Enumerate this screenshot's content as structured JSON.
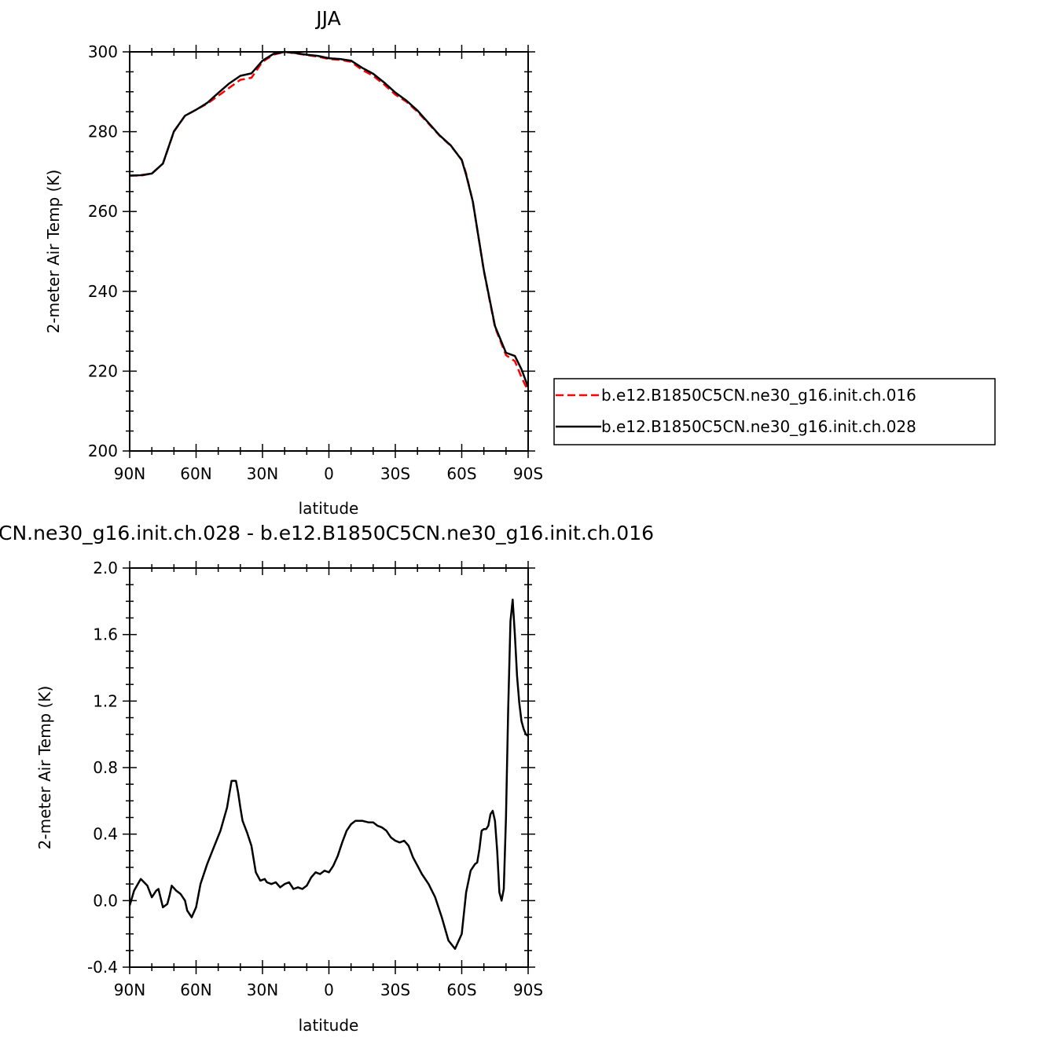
{
  "chart_data": [
    {
      "type": "line",
      "title": "JJA",
      "xlabel": "latitude",
      "ylabel": "2-meter Air Temp (K)",
      "xlim": [
        90,
        -90
      ],
      "ylim": [
        200,
        300
      ],
      "x_ticks": [
        90,
        60,
        30,
        0,
        -30,
        -60,
        -90
      ],
      "x_tick_labels": [
        "90N",
        "60N",
        "30N",
        "0",
        "30S",
        "60S",
        "90S"
      ],
      "y_ticks": [
        200,
        220,
        240,
        260,
        280,
        300
      ],
      "y_tick_labels": [
        "200",
        "220",
        "240",
        "260",
        "280",
        "300"
      ],
      "legend_position": "right",
      "series": [
        {
          "name": "b.e12.B1850C5CN.ne30_g16.init.ch.016",
          "color": "#ff0000",
          "dash": "dashed",
          "x": [
            90,
            85,
            80,
            75,
            70,
            65,
            60,
            55,
            50,
            45,
            40,
            35,
            30,
            25,
            20,
            15,
            10,
            5,
            0,
            -5,
            -10,
            -15,
            -20,
            -25,
            -30,
            -35,
            -40,
            -45,
            -50,
            -55,
            -60,
            -62,
            -65,
            -70,
            -75,
            -80,
            -84,
            -87,
            -90
          ],
          "y": [
            269,
            269,
            269.5,
            272,
            280,
            284,
            285.5,
            287,
            289,
            291,
            293,
            293.5,
            297.5,
            299.3,
            300,
            299.6,
            299.2,
            298.8,
            298.2,
            298,
            297.5,
            295.5,
            294,
            291.8,
            289.3,
            287.5,
            285,
            282,
            279,
            276.5,
            273,
            269.5,
            262.5,
            245,
            231,
            224,
            222.5,
            218.5,
            215
          ]
        },
        {
          "name": "b.e12.B1850C5CN.ne30_g16.init.ch.028",
          "color": "#000000",
          "dash": "solid",
          "x": [
            90,
            85,
            80,
            75,
            70,
            65,
            60,
            55,
            50,
            45,
            40,
            35,
            30,
            25,
            20,
            15,
            10,
            5,
            0,
            -5,
            -10,
            -15,
            -20,
            -25,
            -30,
            -35,
            -40,
            -45,
            -50,
            -55,
            -60,
            -62,
            -65,
            -70,
            -75,
            -80,
            -84,
            -87,
            -90
          ],
          "y": [
            269,
            269.1,
            269.5,
            272,
            280.1,
            284,
            285.5,
            287.2,
            289.7,
            292.1,
            294,
            294.6,
            297.8,
            299.5,
            300,
            299.7,
            299.3,
            299,
            298.4,
            298.2,
            297.8,
            296,
            294.5,
            292.3,
            289.8,
            287.8,
            285.3,
            282.2,
            279.1,
            276.6,
            272.9,
            269.2,
            262.5,
            245.2,
            231.3,
            224.6,
            223.8,
            220.5,
            216
          ]
        }
      ]
    },
    {
      "type": "line",
      "title": "CN.ne30_g16.init.ch.028 - b.e12.B1850C5CN.ne30_g16.init.ch.016",
      "xlabel": "latitude",
      "ylabel": "2-meter Air Temp (K)",
      "xlim": [
        90,
        -90
      ],
      "ylim": [
        -0.4,
        2.0
      ],
      "x_ticks": [
        90,
        60,
        30,
        0,
        -30,
        -60,
        -90
      ],
      "x_tick_labels": [
        "90N",
        "60N",
        "30N",
        "0",
        "30S",
        "60S",
        "90S"
      ],
      "y_ticks": [
        -0.4,
        0.0,
        0.4,
        0.8,
        1.2,
        1.6,
        2.0
      ],
      "y_tick_labels": [
        "-0.4",
        "0.0",
        "0.4",
        "0.8",
        "1.2",
        "1.6",
        "2.0"
      ],
      "series": [
        {
          "color": "#000000",
          "dash": "solid",
          "x": [
            90,
            88,
            85,
            82,
            80,
            78,
            77,
            75,
            73,
            72,
            71,
            69,
            67,
            65,
            64,
            62,
            60,
            58,
            55,
            52,
            49,
            46,
            44,
            42,
            41,
            40,
            39,
            37,
            35,
            33,
            31,
            29,
            28,
            26,
            24,
            22,
            20,
            18,
            16,
            14,
            12,
            10,
            8,
            6,
            4,
            2,
            0,
            -2,
            -4,
            -6,
            -8,
            -10,
            -12,
            -15,
            -18,
            -20,
            -22,
            -24,
            -26,
            -28,
            -30,
            -32,
            -34,
            -36,
            -38,
            -40,
            -42,
            -45,
            -48,
            -51,
            -54,
            -57,
            -60,
            -62,
            -64,
            -66,
            -67,
            -68,
            -69,
            -70,
            -71,
            -72,
            -73,
            -74,
            -75,
            -76,
            -77,
            -78,
            -79,
            -80,
            -81,
            -82,
            -83,
            -84,
            -85,
            -86,
            -87,
            -88,
            -89,
            -90
          ],
          "y": [
            -0.03,
            0.06,
            0.13,
            0.09,
            0.02,
            0.06,
            0.07,
            -0.04,
            -0.02,
            0.03,
            0.09,
            0.06,
            0.04,
            0.0,
            -0.06,
            -0.1,
            -0.04,
            0.1,
            0.22,
            0.32,
            0.42,
            0.56,
            0.72,
            0.72,
            0.65,
            0.56,
            0.48,
            0.41,
            0.33,
            0.17,
            0.12,
            0.13,
            0.11,
            0.1,
            0.11,
            0.08,
            0.1,
            0.11,
            0.07,
            0.08,
            0.07,
            0.09,
            0.14,
            0.17,
            0.16,
            0.18,
            0.17,
            0.21,
            0.27,
            0.35,
            0.42,
            0.46,
            0.48,
            0.48,
            0.47,
            0.47,
            0.45,
            0.44,
            0.42,
            0.38,
            0.36,
            0.35,
            0.36,
            0.33,
            0.26,
            0.21,
            0.16,
            0.1,
            0.02,
            -0.1,
            -0.24,
            -0.29,
            -0.2,
            0.05,
            0.18,
            0.22,
            0.23,
            0.31,
            0.42,
            0.43,
            0.43,
            0.45,
            0.52,
            0.54,
            0.48,
            0.3,
            0.05,
            0.0,
            0.07,
            0.5,
            1.15,
            1.68,
            1.81,
            1.6,
            1.35,
            1.19,
            1.08,
            1.03,
            1.0,
            0.99
          ]
        }
      ]
    }
  ]
}
